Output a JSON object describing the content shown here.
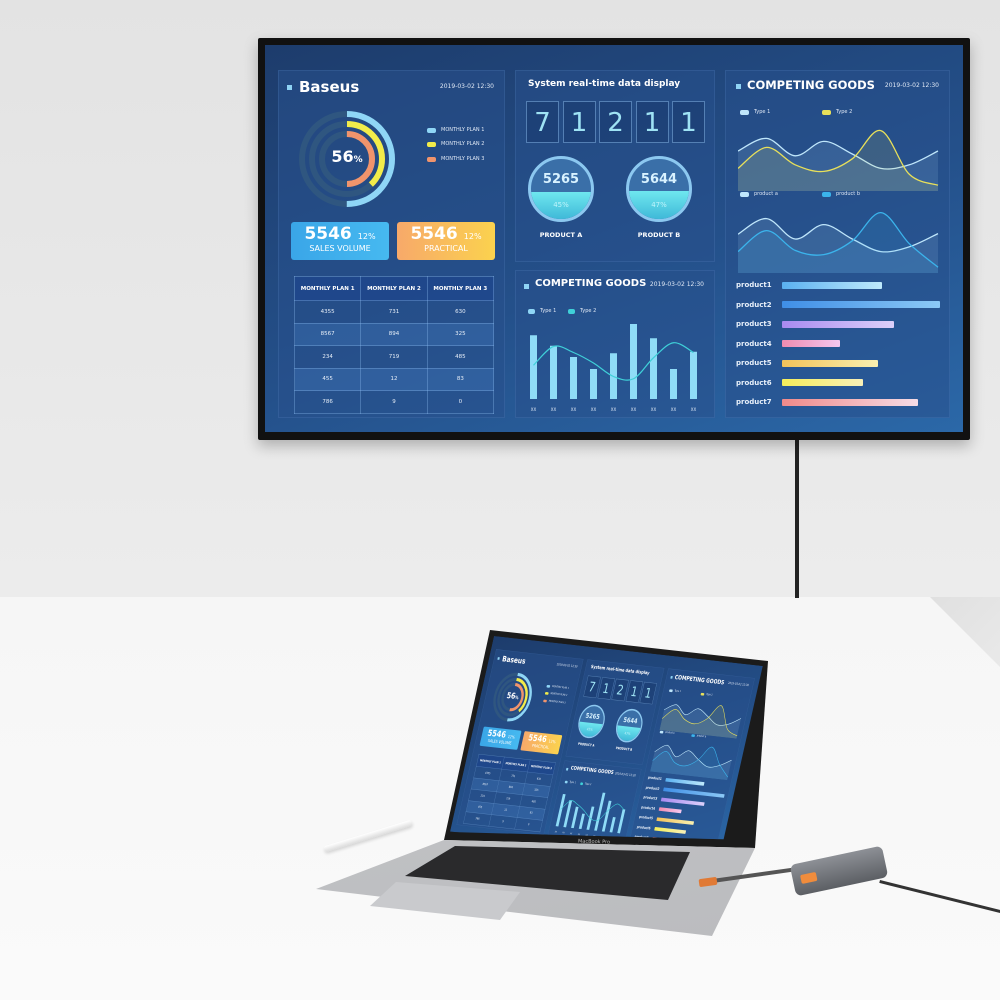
{
  "brand": "Baseus",
  "date": "2019-03-02  12:30",
  "donut": {
    "center_value": "56",
    "center_unit": "%",
    "legend": [
      "MONTHLY PLAN 1",
      "MONTHLY PLAN 2",
      "MONTHLY PLAN 3"
    ],
    "colors": [
      "#8fd6f6",
      "#f2ec4a",
      "#f0946c"
    ],
    "fractions": [
      0.5,
      0.38,
      0.5
    ]
  },
  "kpis": [
    {
      "value": "5546",
      "pct": "12%",
      "label": "SALES VOLUME",
      "color": "#3aa6e8"
    },
    {
      "value": "5546",
      "pct": "12%",
      "label": "PRACTICAL",
      "color": "#f7b562"
    }
  ],
  "plan_table": {
    "headers": [
      "MONTHLY PLAN 1",
      "MONTHLY PLAN 2",
      "MONTHLY PLAN 3"
    ],
    "rows": [
      [
        "4355",
        "731",
        "630"
      ],
      [
        "8567",
        "894",
        "325"
      ],
      [
        "234",
        "719",
        "485"
      ],
      [
        "455",
        "12",
        "83"
      ],
      [
        "786",
        "9",
        "0"
      ]
    ]
  },
  "realtime": {
    "title": "System real-time data display",
    "digits": [
      "7",
      "1",
      "2",
      "1",
      "1"
    ],
    "products": [
      {
        "value": "5265",
        "pct": "45%",
        "fill": 0.45,
        "label": "PRODUCT A"
      },
      {
        "value": "5644",
        "pct": "47%",
        "fill": 0.47,
        "label": "PRODUCT B"
      }
    ]
  },
  "competing_bar": {
    "title": "COMPETING GOODS",
    "legend": [
      "Type 1",
      "Type 2"
    ],
    "categories": [
      "XX",
      "XX",
      "XX",
      "XX",
      "XX",
      "XX",
      "XX",
      "XX",
      "XX"
    ],
    "bars": [
      85,
      71,
      56,
      40,
      61,
      100,
      81,
      40,
      63
    ],
    "line": [
      45,
      70,
      62,
      48,
      30,
      27,
      55,
      75,
      62
    ]
  },
  "competing_lines": {
    "title": "COMPETING GOODS",
    "top": {
      "legend": [
        "Type 1",
        "Type 2"
      ],
      "colors": [
        "#bfe6fb",
        "#e8e05a"
      ],
      "series": [
        [
          60,
          81,
          52,
          76,
          55,
          31,
          37,
          60
        ],
        [
          31,
          66,
          37,
          26,
          47,
          94,
          21,
          3
        ]
      ]
    },
    "bottom": {
      "legend": [
        "product a",
        "product b"
      ],
      "colors": [
        "#bfe6fb",
        "#3bb4ec"
      ],
      "series": [
        [
          58,
          84,
          50,
          74,
          50,
          29,
          37,
          59
        ],
        [
          29,
          64,
          31,
          24,
          47,
          94,
          42,
          3
        ]
      ]
    }
  },
  "products": {
    "items": [
      {
        "label": "product1",
        "value": 0.63,
        "colors": [
          "#5ab0f0",
          "#bfeafc"
        ]
      },
      {
        "label": "product2",
        "value": 1.0,
        "colors": [
          "#3f8ee6",
          "#8cc9f6"
        ]
      },
      {
        "label": "product3",
        "value": 0.71,
        "colors": [
          "#a88af0",
          "#dcd0fa"
        ]
      },
      {
        "label": "product4",
        "value": 0.37,
        "colors": [
          "#f08cb0",
          "#f5c8f0"
        ]
      },
      {
        "label": "product5",
        "value": 0.61,
        "colors": [
          "#f2c25a",
          "#faf0b0"
        ]
      },
      {
        "label": "product6",
        "value": 0.51,
        "colors": [
          "#f5ee5a",
          "#f8f0b8"
        ]
      },
      {
        "label": "product7",
        "value": 0.86,
        "colors": [
          "#f08a8a",
          "#f6dce6"
        ]
      }
    ]
  },
  "laptop": {
    "model": "MacBook Pro"
  }
}
